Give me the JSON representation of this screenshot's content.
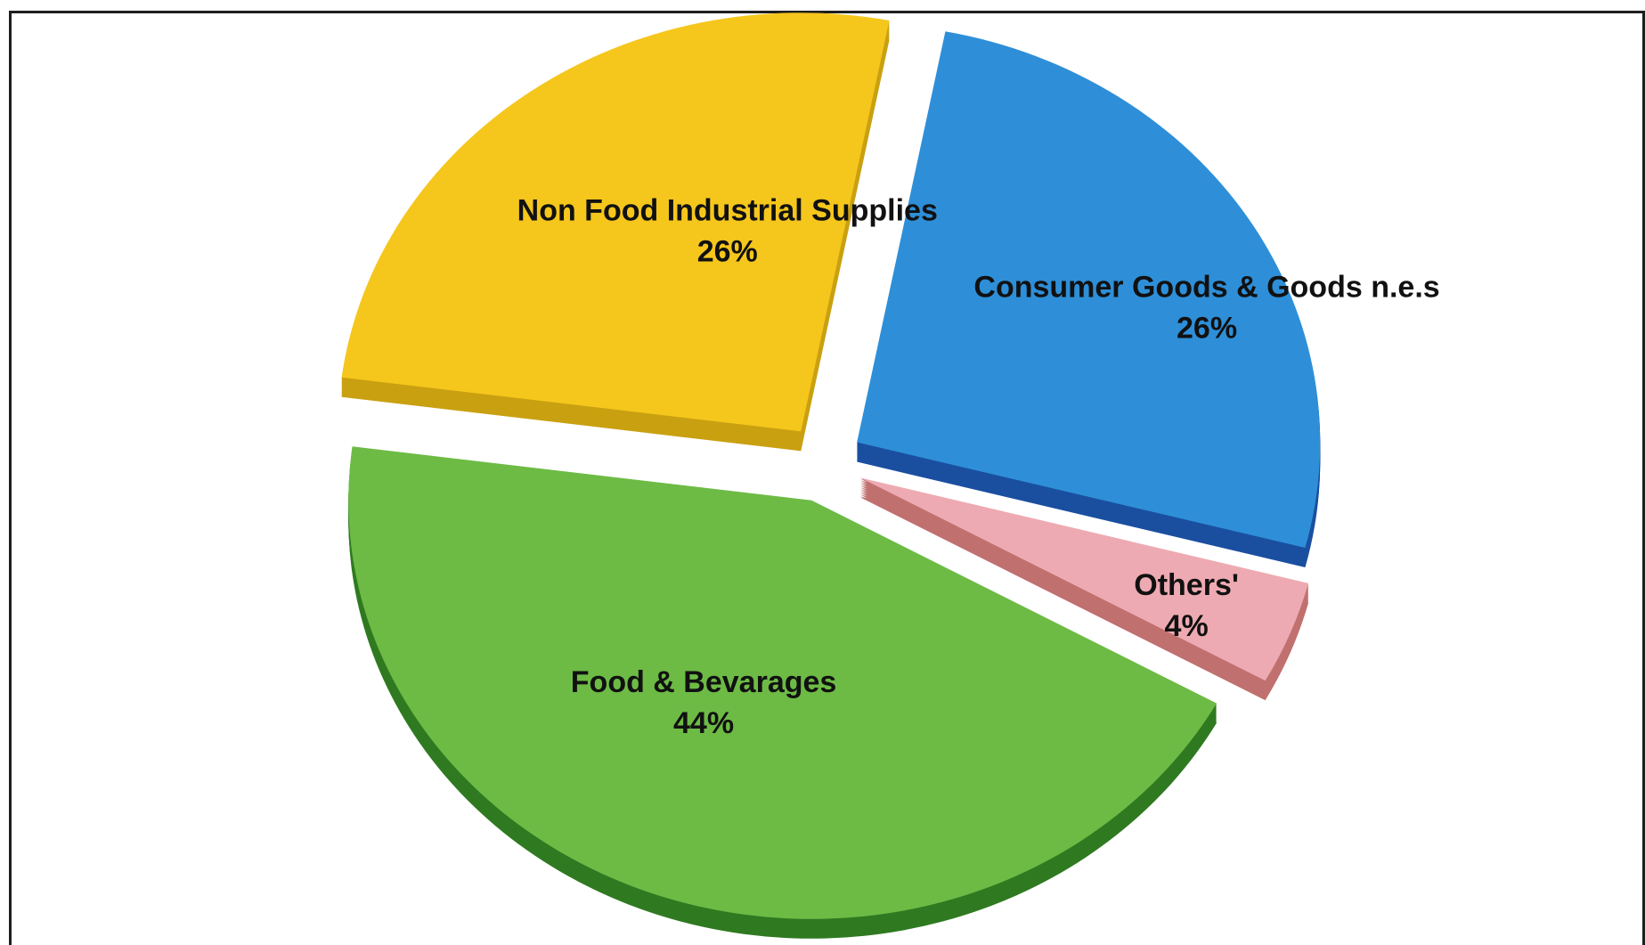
{
  "chart_data": {
    "type": "pie",
    "style": "3d-exploded",
    "title": "",
    "legend": "none",
    "slices": [
      {
        "label": "Consumer Goods & Goods n.e.s",
        "value": 26,
        "value_label": "26%",
        "color": "#2e8fd8",
        "side_color": "#1a4fa0"
      },
      {
        "label": "Others'",
        "value": 4,
        "value_label": "4%",
        "color": "#eeaab2",
        "side_color": "#c0706e"
      },
      {
        "label": "Food & Bevarages",
        "value": 44,
        "value_label": "44%",
        "color": "#6dbb45",
        "side_color": "#2f7a20"
      },
      {
        "label": "Non Food Industrial  Supplies",
        "value": 26,
        "value_label": "26%",
        "color": "#f5c61c",
        "side_color": "#c9a010"
      }
    ]
  }
}
